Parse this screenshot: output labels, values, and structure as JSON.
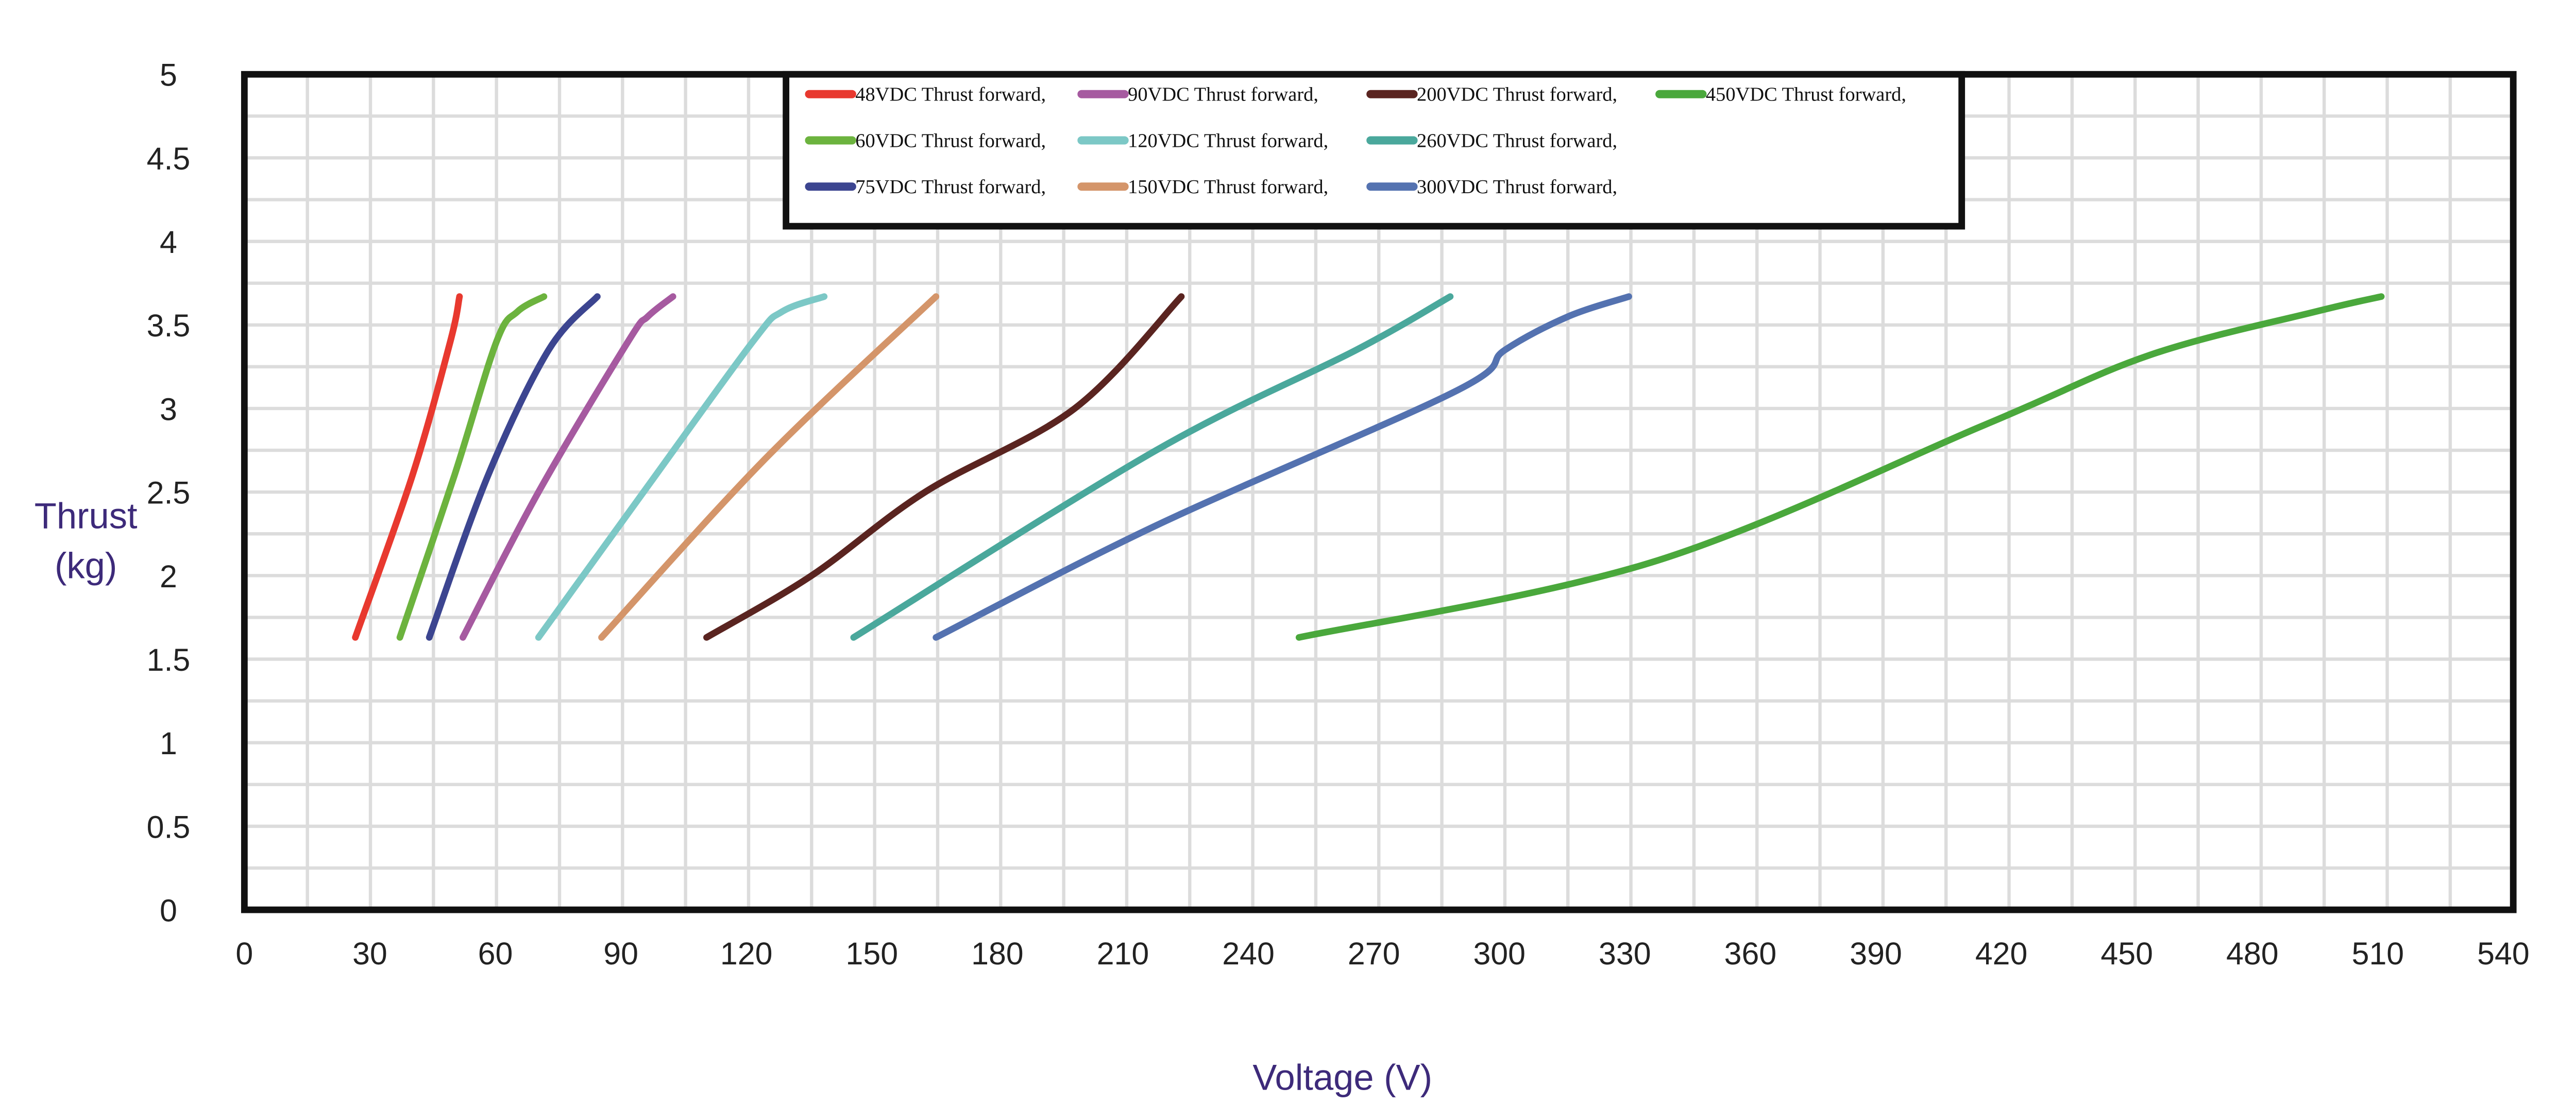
{
  "chart_data": {
    "type": "line",
    "title": "",
    "xlabel": "Voltage (V)",
    "ylabel_lines": [
      "Thrust",
      "(kg)"
    ],
    "xlim": [
      0,
      540
    ],
    "ylim": [
      0,
      5
    ],
    "xticks": [
      0,
      30,
      60,
      90,
      120,
      150,
      180,
      210,
      240,
      270,
      300,
      330,
      360,
      390,
      420,
      450,
      480,
      510,
      540
    ],
    "yticks": [
      0,
      0.5,
      1,
      1.5,
      2,
      2.5,
      3,
      3.5,
      4,
      4.5,
      5
    ],
    "ytick_labels": [
      "0",
      "0.5",
      "1",
      "1.5",
      "2",
      "2.5",
      "3",
      "3.5",
      "4",
      "4.5",
      "5"
    ],
    "grid": true,
    "legend_position": "top-center",
    "series": [
      {
        "name": "48VDC Thrust forward,",
        "color": "#e8392f",
        "points": [
          [
            26.4,
            1.63
          ],
          [
            40,
            2.6
          ],
          [
            49,
            3.4
          ],
          [
            51.2,
            3.67
          ]
        ]
      },
      {
        "name": "90VDC  Thrust forward,",
        "color": "#a65aa0",
        "points": [
          [
            52,
            1.63
          ],
          [
            70,
            2.5
          ],
          [
            91.3,
            3.4
          ],
          [
            96,
            3.55
          ],
          [
            102,
            3.67
          ]
        ]
      },
      {
        "name": "200VDC Thrust forward,",
        "color": "#5a2420",
        "points": [
          [
            110,
            1.63
          ],
          [
            135,
            2.0
          ],
          [
            162,
            2.5
          ],
          [
            197.6,
            3.0
          ],
          [
            223,
            3.67
          ]
        ]
      },
      {
        "name": "450VDC Thrust forward,",
        "color": "#4aa83c",
        "points": [
          [
            251,
            1.63
          ],
          [
            335,
            2.08
          ],
          [
            414,
            2.9
          ],
          [
            453.5,
            3.32
          ],
          [
            493,
            3.58
          ],
          [
            508.6,
            3.67
          ]
        ]
      },
      {
        "name": "60VDC Thrust forward,",
        "color": "#6cb33e",
        "points": [
          [
            37,
            1.63
          ],
          [
            50,
            2.6
          ],
          [
            60,
            3.4
          ],
          [
            65,
            3.58
          ],
          [
            71.3,
            3.67
          ]
        ]
      },
      {
        "name": "120VDC Thrust forward,",
        "color": "#7cc8c6",
        "points": [
          [
            70,
            1.63
          ],
          [
            95,
            2.5
          ],
          [
            121,
            3.4
          ],
          [
            128,
            3.58
          ],
          [
            138,
            3.67
          ]
        ]
      },
      {
        "name": "260VDC Thrust forward,",
        "color": "#4aa89c",
        "points": [
          [
            145,
            1.63
          ],
          [
            217,
            2.75
          ],
          [
            264.6,
            3.35
          ],
          [
            287,
            3.67
          ]
        ]
      },
      {
        "name": "75VDC Thrust forward,",
        "color": "#3c4590",
        "points": [
          [
            44,
            1.63
          ],
          [
            58,
            2.6
          ],
          [
            72.4,
            3.35
          ],
          [
            84,
            3.67
          ]
        ]
      },
      {
        "name": "150VDC Thrust forward,",
        "color": "#d4956a",
        "points": [
          [
            85,
            1.63
          ],
          [
            124,
            2.7
          ],
          [
            164.6,
            3.67
          ]
        ]
      },
      {
        "name": "300VDC Thrust forward,",
        "color": "#5472b0",
        "points": [
          [
            164.6,
            1.63
          ],
          [
            217,
            2.3
          ],
          [
            288,
            3.1
          ],
          [
            300,
            3.35
          ],
          [
            315,
            3.55
          ],
          [
            329.5,
            3.67
          ]
        ]
      }
    ]
  }
}
